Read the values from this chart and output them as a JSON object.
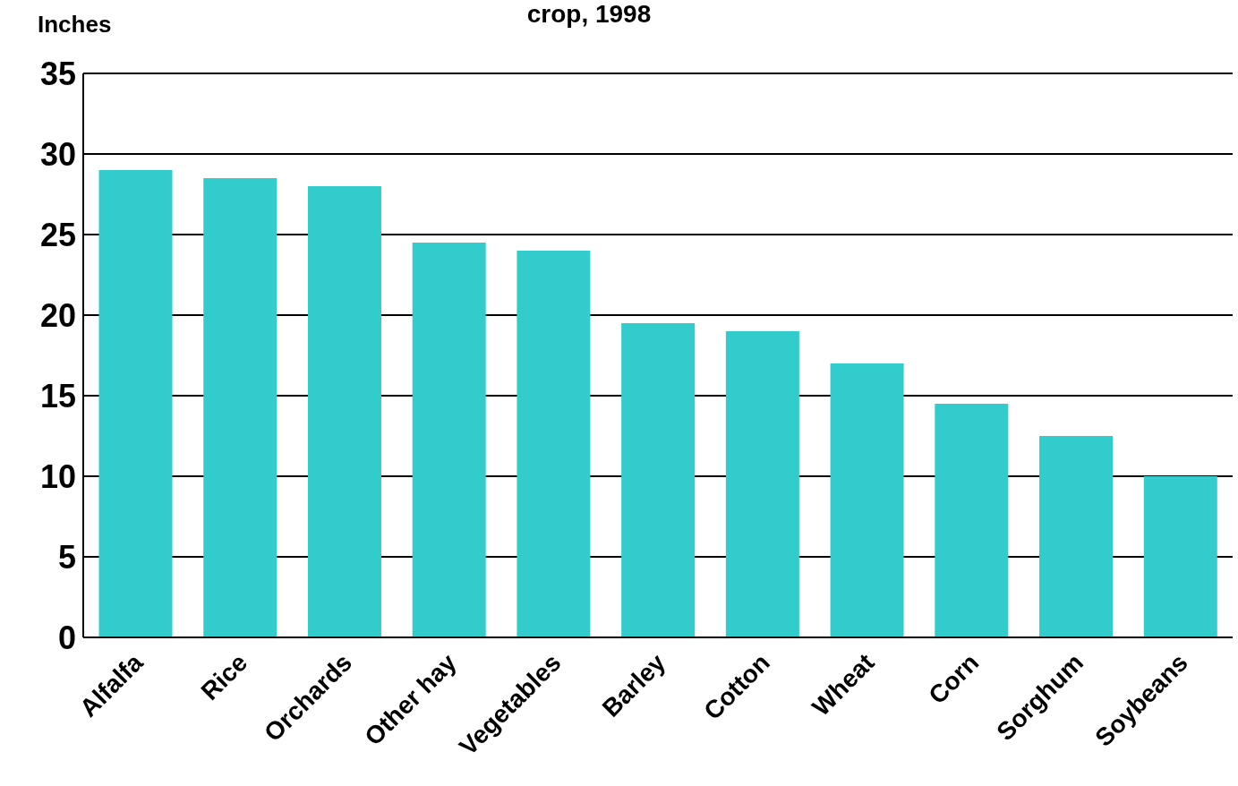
{
  "chart_data": {
    "type": "bar",
    "title": "crop, 1998",
    "ylabel": "Inches",
    "categories": [
      "Alfalfa",
      "Rice",
      "Orchards",
      "Other hay",
      "Vegetables",
      "Barley",
      "Cotton",
      "Wheat",
      "Corn",
      "Sorghum",
      "Soybeans"
    ],
    "values": [
      29.0,
      28.5,
      28.0,
      24.5,
      24.0,
      19.5,
      19.0,
      17.0,
      14.5,
      12.5,
      10.0
    ],
    "color": "#33cccc",
    "ylim": [
      0,
      35
    ],
    "yticks": [
      0,
      5,
      10,
      15,
      20,
      25,
      30,
      35
    ],
    "grid": "y"
  }
}
